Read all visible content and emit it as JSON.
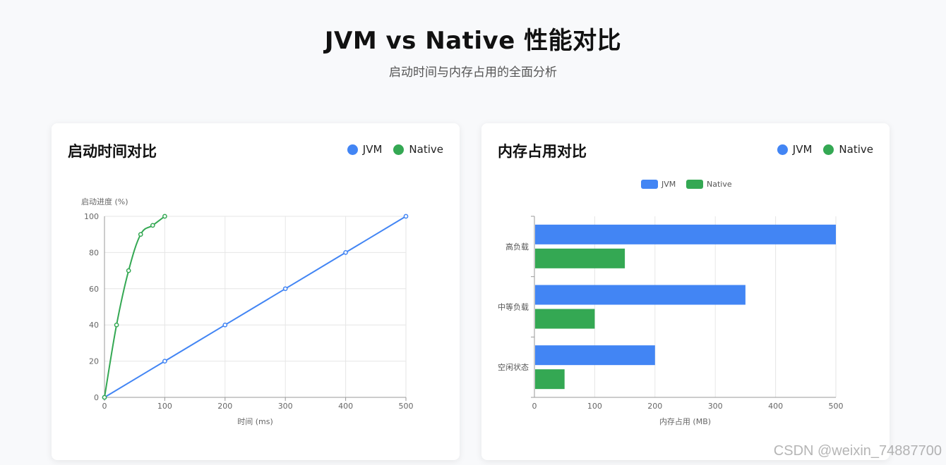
{
  "header": {
    "title": "JVM vs Native 性能对比",
    "subtitle": "启动时间与内存占用的全面分析"
  },
  "colors": {
    "jvm": "#4285f4",
    "native": "#34a853"
  },
  "cards": {
    "startup": {
      "title": "启动时间对比",
      "legend": [
        {
          "name": "JVM",
          "color": "#4285f4"
        },
        {
          "name": "Native",
          "color": "#34a853"
        }
      ]
    },
    "memory": {
      "title": "内存占用对比",
      "legend": [
        {
          "name": "JVM",
          "color": "#4285f4"
        },
        {
          "name": "Native",
          "color": "#34a853"
        }
      ]
    }
  },
  "chart_data": [
    {
      "type": "line",
      "title": "",
      "xlabel": "时间 (ms)",
      "ylabel": "启动进度 (%)",
      "xlim": [
        0,
        500
      ],
      "ylim": [
        0,
        100
      ],
      "xticks": [
        0,
        100,
        200,
        300,
        400,
        500
      ],
      "yticks": [
        0,
        20,
        40,
        60,
        80,
        100
      ],
      "grid": true,
      "legend_shown": false,
      "series": [
        {
          "key": "jvm",
          "color": "#4285f4",
          "x": [
            0,
            100,
            200,
            300,
            400,
            500
          ],
          "y": [
            0,
            20,
            40,
            60,
            80,
            100
          ]
        },
        {
          "key": "native",
          "color": "#34a853",
          "x": [
            0,
            20,
            40,
            60,
            80,
            100
          ],
          "y": [
            0,
            40,
            70,
            90,
            95,
            100
          ]
        }
      ]
    },
    {
      "type": "bar",
      "orientation": "horizontal",
      "title": "",
      "xlabel": "内存占用 (MB)",
      "ylabel": "",
      "categories": [
        "空闲状态",
        "中等负载",
        "高负载"
      ],
      "xlim": [
        0,
        500
      ],
      "xticks": [
        0,
        100,
        200,
        300,
        400,
        500
      ],
      "grid": true,
      "legend_position": "top-center",
      "series": [
        {
          "name": "JVM",
          "color": "#4285f4",
          "values": [
            200,
            350,
            500
          ]
        },
        {
          "name": "Native",
          "color": "#34a853",
          "values": [
            50,
            100,
            150
          ]
        }
      ]
    }
  ],
  "watermark": "CSDN @weixin_74887700"
}
